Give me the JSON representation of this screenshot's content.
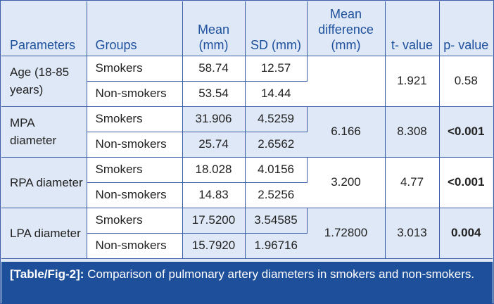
{
  "table": {
    "headers": {
      "parameters": "Parameters",
      "groups": "Groups",
      "mean": "Mean (mm)",
      "sd": "SD (mm)",
      "mean_difference": "Mean difference (mm)",
      "t_value": "t- value",
      "p_value": "p- value"
    },
    "rows": [
      {
        "parameter": "Age (18-85 years)",
        "smokers": {
          "group": "Smokers",
          "mean": "58.74",
          "sd": "12.57"
        },
        "nonsmokers": {
          "group": "Non-smokers",
          "mean": "53.54",
          "sd": "14.44"
        },
        "mean_difference": "",
        "t_value": "1.921",
        "p_value": "0.58"
      },
      {
        "parameter": "MPA diameter",
        "smokers": {
          "group": "Smokers",
          "mean": "31.906",
          "sd": "4.5259"
        },
        "nonsmokers": {
          "group": "Non-smokers",
          "mean": "25.74",
          "sd": "2.6562"
        },
        "mean_difference": "6.166",
        "t_value": "8.308",
        "p_value": "<0.001"
      },
      {
        "parameter": "RPA diameter",
        "smokers": {
          "group": "Smokers",
          "mean": "18.028",
          "sd": "4.0156"
        },
        "nonsmokers": {
          "group": "Non-smokers",
          "mean": "14.83",
          "sd": "2.5256"
        },
        "mean_difference": "3.200",
        "t_value": "4.77",
        "p_value": "<0.001"
      },
      {
        "parameter": "LPA diameter",
        "smokers": {
          "group": "Smokers",
          "mean": "17.5200",
          "sd": "3.54585"
        },
        "nonsmokers": {
          "group": "Non-smokers",
          "mean": "15.7920",
          "sd": "1.96716"
        },
        "mean_difference": "1.72800",
        "t_value": "3.013",
        "p_value": "0.004"
      }
    ]
  },
  "caption": {
    "tag": "[Table/Fig-2]:",
    "text": "Comparison of pulmonary artery diameters in smokers and non-smokers."
  },
  "colors": {
    "header_text": "#1c4f9c",
    "border": "#3a5fa8",
    "row_shade": "#dfe8f6",
    "caption_bg": "#1d4f9b"
  }
}
